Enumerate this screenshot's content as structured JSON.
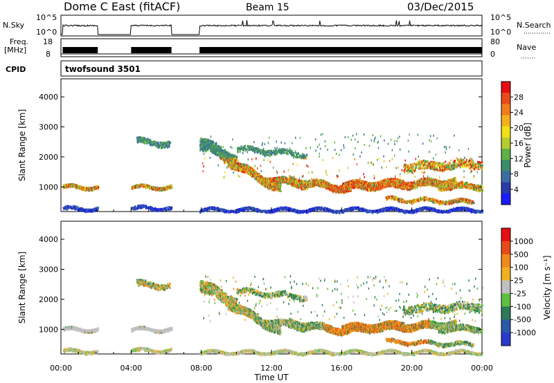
{
  "header": {
    "radar": "Dome C East (fitACF)",
    "beam": "Beam 15",
    "date": "03/Dec/2015"
  },
  "panels": {
    "nsky": {
      "label": "N.Sky",
      "right_label": "N.Search",
      "left_ticks": [
        "10^5",
        "10^0"
      ],
      "right_ticks": [
        "10^5",
        "10^0"
      ]
    },
    "freq": {
      "label_top": "Freq.",
      "label_unit": "[MHz]",
      "right_label": "Nave",
      "left_ticks": [
        "18",
        "8"
      ],
      "right_ticks": [
        "80",
        "0"
      ]
    },
    "cpid": {
      "label": "CPID",
      "text": "twofsound 3501"
    }
  },
  "chart_data": [
    {
      "type": "heatmap",
      "name": "power",
      "ylabel": "Slant Range [km]",
      "yticks": [
        "1000",
        "2000",
        "3000",
        "4000"
      ],
      "ylim": [
        180,
        4600
      ],
      "colorbar": {
        "label": "Power [dB]",
        "ticks": [
          "28",
          "24",
          "20",
          "16",
          "12",
          "8",
          "4"
        ],
        "range": [
          0,
          32
        ],
        "colors": [
          "#1b1bff",
          "#2a3aa8",
          "#3b6ea0",
          "#3c8c6a",
          "#5fb04a",
          "#b5cc2e",
          "#f0e016",
          "#f3b01c",
          "#f07c1c",
          "#e84a1a",
          "#e60f12"
        ]
      }
    },
    {
      "type": "heatmap",
      "name": "velocity",
      "ylabel": "Slant Range [km]",
      "yticks": [
        "1000",
        "2000",
        "3000",
        "4000"
      ],
      "ylim": [
        180,
        4600
      ],
      "colorbar": {
        "label": "Velocity [m s⁻¹]",
        "ticks": [
          "1000",
          "500",
          "100",
          "25",
          "-25",
          "-100",
          "-500",
          "-1000"
        ],
        "colors": [
          "#2a3acd",
          "#2a5aa8",
          "#2f7a58",
          "#5fc040",
          "#c0c0c0",
          "#f0b020",
          "#f08a1c",
          "#e84a1a",
          "#e60f12"
        ]
      }
    }
  ],
  "xaxis": {
    "label": "Time UT",
    "ticks": [
      "00:00",
      "04:00",
      "08:00",
      "12:00",
      "16:00",
      "20:00",
      "00:00"
    ],
    "range_hours": [
      0,
      24
    ]
  }
}
